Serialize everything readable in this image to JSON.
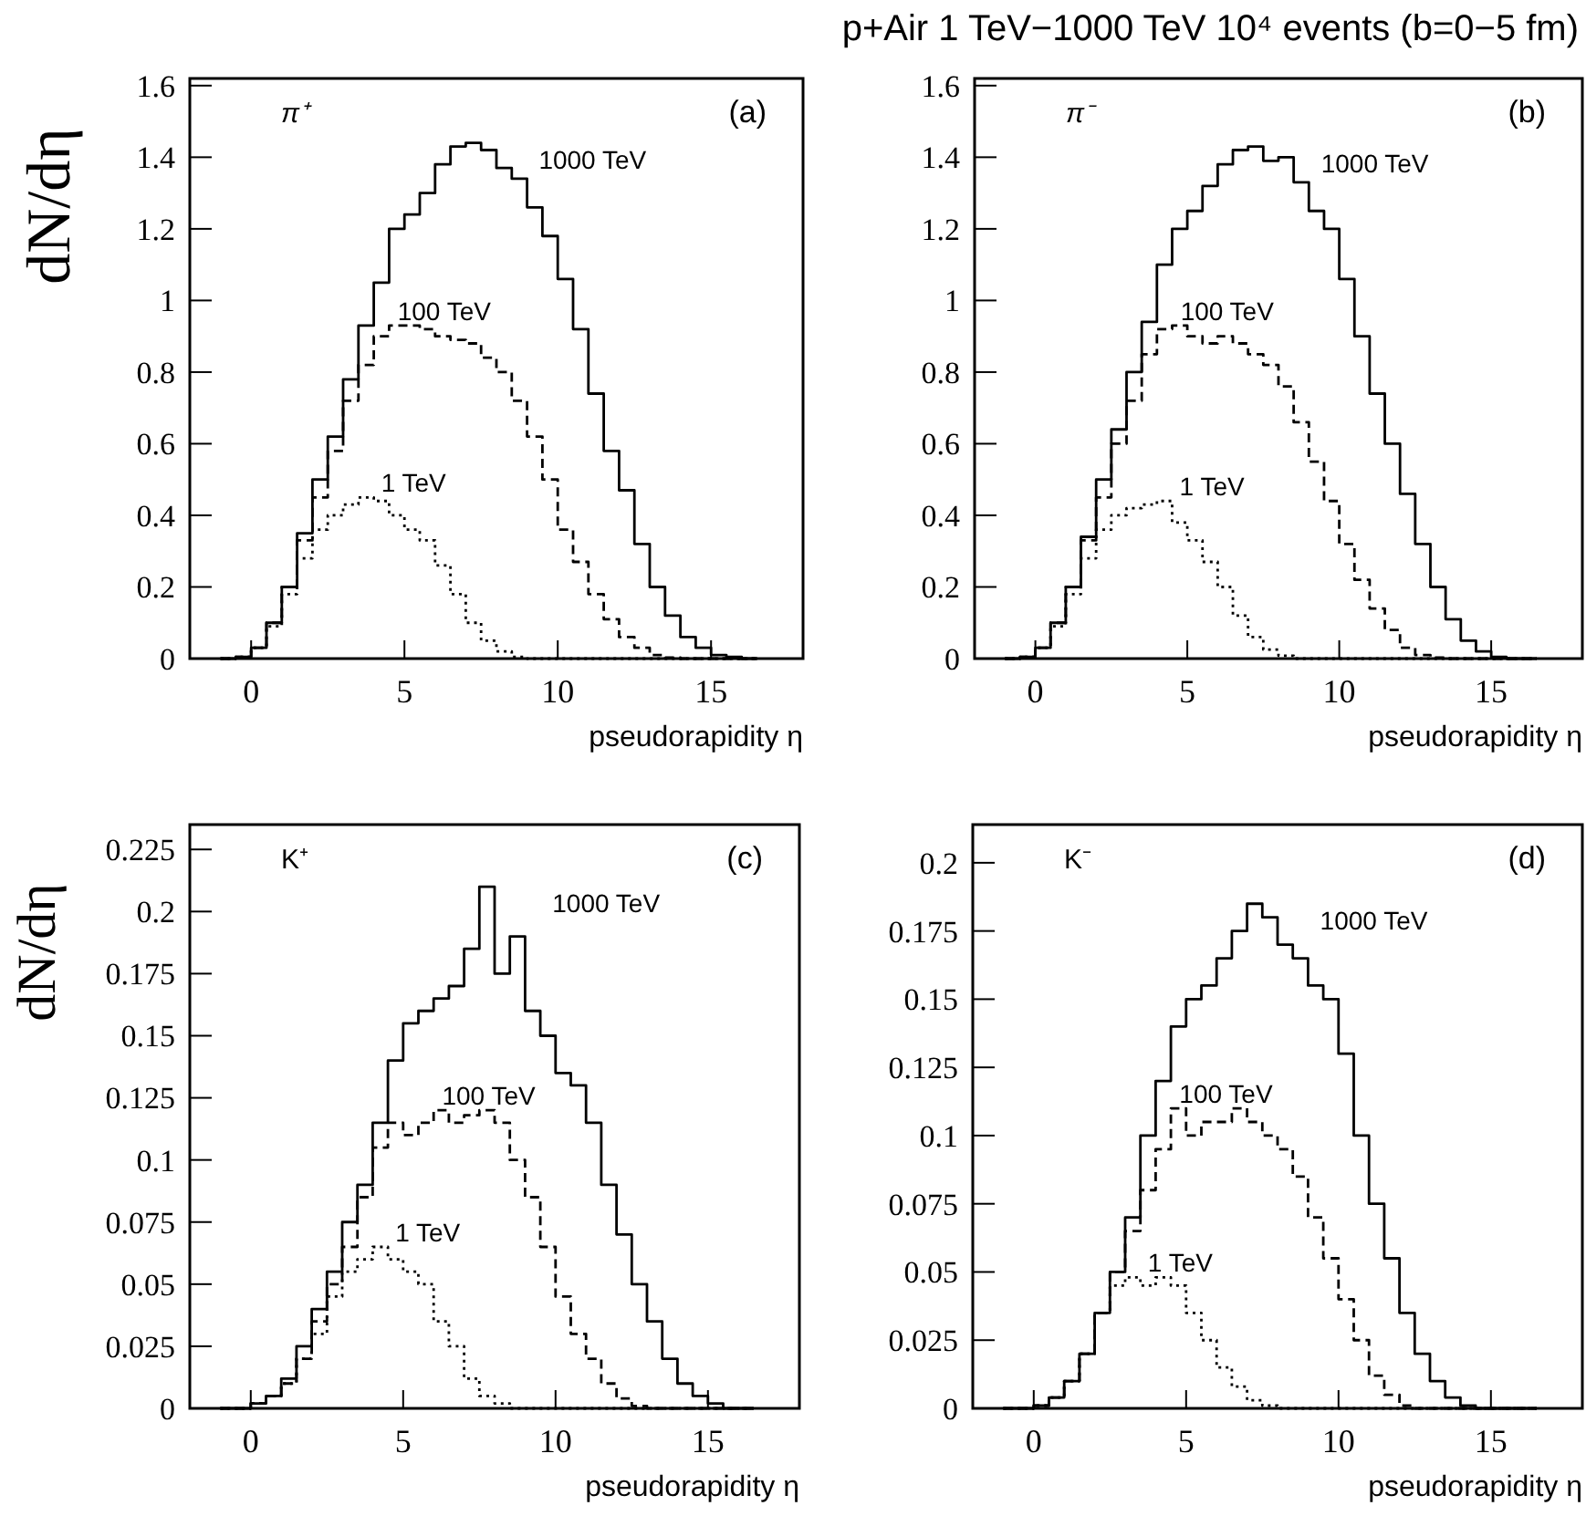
{
  "chart_data": [
    {
      "type": "step",
      "xlabel": "pseudorapidity η",
      "ylabel": "dN/dη",
      "annotations": [
        "π⁺",
        "(a)"
      ],
      "xlim": [
        -2,
        18
      ],
      "xticks": [
        0,
        5,
        10,
        15
      ],
      "ylim": [
        0,
        1.62
      ],
      "yticks": [
        0,
        0.2,
        0.4,
        0.6,
        0.8,
        1,
        1.2,
        1.4,
        1.6
      ],
      "x": [
        -1,
        -0.5,
        0,
        0.5,
        1,
        1.5,
        2,
        2.5,
        3,
        3.5,
        4,
        4.5,
        5,
        5.5,
        6,
        6.5,
        7,
        7.5,
        8,
        8.5,
        9,
        9.5,
        10,
        10.5,
        11,
        11.5,
        12,
        12.5,
        13,
        13.5,
        14,
        14.5,
        15,
        15.5,
        16,
        16.5
      ],
      "series": [
        {
          "name": "1000 TeV",
          "color": "#000000",
          "line_style": "solid",
          "values": [
            0,
            0.005,
            0.03,
            0.1,
            0.2,
            0.35,
            0.5,
            0.62,
            0.78,
            0.93,
            1.05,
            1.2,
            1.24,
            1.3,
            1.38,
            1.43,
            1.44,
            1.42,
            1.37,
            1.34,
            1.26,
            1.18,
            1.06,
            0.92,
            0.74,
            0.58,
            0.47,
            0.32,
            0.2,
            0.12,
            0.06,
            0.03,
            0.01,
            0.005,
            0,
            0
          ]
        },
        {
          "name": "100 TeV",
          "color": "#000000",
          "line_style": "dashed",
          "values": [
            0,
            0.005,
            0.03,
            0.1,
            0.2,
            0.33,
            0.45,
            0.58,
            0.72,
            0.82,
            0.9,
            0.93,
            0.93,
            0.92,
            0.9,
            0.89,
            0.88,
            0.84,
            0.8,
            0.72,
            0.62,
            0.5,
            0.36,
            0.27,
            0.18,
            0.11,
            0.06,
            0.03,
            0.01,
            0.003,
            0,
            0,
            0,
            0,
            0,
            0
          ]
        },
        {
          "name": "1 TeV",
          "color": "#000000",
          "line_style": "dotted",
          "values": [
            0,
            0.005,
            0.03,
            0.09,
            0.18,
            0.28,
            0.36,
            0.4,
            0.43,
            0.45,
            0.44,
            0.4,
            0.36,
            0.33,
            0.26,
            0.18,
            0.1,
            0.05,
            0.02,
            0.005,
            0,
            0,
            0,
            0,
            0,
            0,
            0,
            0,
            0,
            0,
            0,
            0,
            0,
            0,
            0,
            0
          ]
        }
      ]
    },
    {
      "type": "step",
      "title": "p+Air 1 TeV−1000 TeV 10⁴ events (b=0−5 fm)",
      "xlabel": "pseudorapidity η",
      "annotations": [
        "π⁻",
        "(b)"
      ],
      "xlim": [
        -2,
        18
      ],
      "xticks": [
        0,
        5,
        10,
        15
      ],
      "ylim": [
        0,
        1.62
      ],
      "yticks": [
        0,
        0.2,
        0.4,
        0.6,
        0.8,
        1,
        1.2,
        1.4,
        1.6
      ],
      "x": [
        -1,
        -0.5,
        0,
        0.5,
        1,
        1.5,
        2,
        2.5,
        3,
        3.5,
        4,
        4.5,
        5,
        5.5,
        6,
        6.5,
        7,
        7.5,
        8,
        8.5,
        9,
        9.5,
        10,
        10.5,
        11,
        11.5,
        12,
        12.5,
        13,
        13.5,
        14,
        14.5,
        15,
        15.5,
        16,
        16.5
      ],
      "series": [
        {
          "name": "1000 TeV",
          "color": "#000000",
          "line_style": "solid",
          "values": [
            0,
            0.005,
            0.03,
            0.1,
            0.2,
            0.34,
            0.5,
            0.64,
            0.8,
            0.94,
            1.1,
            1.2,
            1.25,
            1.32,
            1.38,
            1.42,
            1.43,
            1.39,
            1.4,
            1.33,
            1.25,
            1.2,
            1.06,
            0.9,
            0.74,
            0.6,
            0.46,
            0.32,
            0.2,
            0.11,
            0.05,
            0.02,
            0.005,
            0,
            0,
            0
          ]
        },
        {
          "name": "100 TeV",
          "color": "#000000",
          "line_style": "dashed",
          "values": [
            0,
            0.005,
            0.03,
            0.1,
            0.2,
            0.33,
            0.45,
            0.6,
            0.72,
            0.85,
            0.92,
            0.93,
            0.9,
            0.88,
            0.9,
            0.88,
            0.85,
            0.82,
            0.76,
            0.66,
            0.55,
            0.44,
            0.32,
            0.22,
            0.14,
            0.08,
            0.03,
            0.01,
            0.003,
            0,
            0,
            0,
            0,
            0,
            0,
            0
          ]
        },
        {
          "name": "1 TeV",
          "color": "#000000",
          "line_style": "dotted",
          "values": [
            0,
            0.005,
            0.03,
            0.09,
            0.18,
            0.28,
            0.36,
            0.4,
            0.42,
            0.43,
            0.44,
            0.38,
            0.33,
            0.27,
            0.2,
            0.12,
            0.06,
            0.025,
            0.008,
            0,
            0,
            0,
            0,
            0,
            0,
            0,
            0,
            0,
            0,
            0,
            0,
            0,
            0,
            0,
            0,
            0
          ]
        }
      ]
    },
    {
      "type": "step",
      "xlabel": "pseudorapidity η",
      "ylabel": "dN/dη",
      "annotations": [
        "K⁺",
        "(c)"
      ],
      "xlim": [
        -2,
        18
      ],
      "xticks": [
        0,
        5,
        10,
        15
      ],
      "ylim": [
        0,
        0.235
      ],
      "yticks": [
        0,
        0.025,
        0.05,
        0.075,
        0.1,
        0.125,
        0.15,
        0.175,
        0.2,
        0.225
      ],
      "x": [
        -1,
        -0.5,
        0,
        0.5,
        1,
        1.5,
        2,
        2.5,
        3,
        3.5,
        4,
        4.5,
        5,
        5.5,
        6,
        6.5,
        7,
        7.5,
        8,
        8.5,
        9,
        9.5,
        10,
        10.5,
        11,
        11.5,
        12,
        12.5,
        13,
        13.5,
        14,
        14.5,
        15,
        15.5,
        16,
        16.5
      ],
      "series": [
        {
          "name": "1000 TeV",
          "color": "#000000",
          "line_style": "solid",
          "values": [
            0,
            0,
            0.002,
            0.005,
            0.012,
            0.025,
            0.04,
            0.055,
            0.075,
            0.09,
            0.115,
            0.14,
            0.155,
            0.16,
            0.165,
            0.17,
            0.185,
            0.21,
            0.175,
            0.19,
            0.16,
            0.15,
            0.135,
            0.13,
            0.115,
            0.09,
            0.07,
            0.05,
            0.035,
            0.02,
            0.01,
            0.005,
            0.002,
            0,
            0,
            0
          ]
        },
        {
          "name": "100 TeV",
          "color": "#000000",
          "line_style": "dashed",
          "values": [
            0,
            0,
            0.002,
            0.005,
            0.01,
            0.02,
            0.035,
            0.05,
            0.065,
            0.085,
            0.105,
            0.115,
            0.11,
            0.115,
            0.12,
            0.115,
            0.118,
            0.12,
            0.115,
            0.1,
            0.085,
            0.065,
            0.045,
            0.03,
            0.02,
            0.01,
            0.004,
            0.001,
            0,
            0,
            0,
            0,
            0,
            0,
            0,
            0
          ]
        },
        {
          "name": "1 TeV",
          "color": "#000000",
          "line_style": "dotted",
          "values": [
            0,
            0,
            0.002,
            0.005,
            0.01,
            0.02,
            0.03,
            0.045,
            0.055,
            0.06,
            0.065,
            0.06,
            0.055,
            0.05,
            0.035,
            0.025,
            0.012,
            0.005,
            0.002,
            0,
            0,
            0,
            0,
            0,
            0,
            0,
            0,
            0,
            0,
            0,
            0,
            0,
            0,
            0,
            0,
            0
          ]
        }
      ]
    },
    {
      "type": "step",
      "xlabel": "pseudorapidity η",
      "annotations": [
        "K⁻",
        "(d)"
      ],
      "xlim": [
        -2,
        18
      ],
      "xticks": [
        0,
        5,
        10,
        15
      ],
      "ylim": [
        0,
        0.214
      ],
      "yticks": [
        0,
        0.025,
        0.05,
        0.075,
        0.1,
        0.125,
        0.15,
        0.175,
        0.2
      ],
      "x": [
        -1,
        -0.5,
        0,
        0.5,
        1,
        1.5,
        2,
        2.5,
        3,
        3.5,
        4,
        4.5,
        5,
        5.5,
        6,
        6.5,
        7,
        7.5,
        8,
        8.5,
        9,
        9.5,
        10,
        10.5,
        11,
        11.5,
        12,
        12.5,
        13,
        13.5,
        14,
        14.5,
        15,
        15.5,
        16,
        16.5
      ],
      "series": [
        {
          "name": "1000 TeV",
          "color": "#000000",
          "line_style": "solid",
          "values": [
            0,
            0,
            0.001,
            0.004,
            0.01,
            0.02,
            0.035,
            0.05,
            0.07,
            0.1,
            0.12,
            0.14,
            0.15,
            0.155,
            0.165,
            0.175,
            0.185,
            0.18,
            0.17,
            0.165,
            0.155,
            0.15,
            0.13,
            0.1,
            0.075,
            0.055,
            0.035,
            0.02,
            0.01,
            0.004,
            0.001,
            0,
            0,
            0,
            0,
            0
          ]
        },
        {
          "name": "100 TeV",
          "color": "#000000",
          "line_style": "dashed",
          "values": [
            0,
            0,
            0.001,
            0.004,
            0.01,
            0.02,
            0.035,
            0.05,
            0.065,
            0.08,
            0.095,
            0.11,
            0.1,
            0.105,
            0.105,
            0.11,
            0.105,
            0.1,
            0.095,
            0.085,
            0.07,
            0.055,
            0.04,
            0.025,
            0.012,
            0.005,
            0.001,
            0,
            0,
            0,
            0,
            0,
            0,
            0,
            0,
            0
          ]
        },
        {
          "name": "1 TeV",
          "color": "#000000",
          "line_style": "dotted",
          "values": [
            0,
            0,
            0.001,
            0.004,
            0.01,
            0.02,
            0.035,
            0.045,
            0.048,
            0.045,
            0.048,
            0.045,
            0.035,
            0.025,
            0.015,
            0.008,
            0.003,
            0.001,
            0,
            0,
            0,
            0,
            0,
            0,
            0,
            0,
            0,
            0,
            0,
            0,
            0,
            0,
            0,
            0,
            0,
            0
          ]
        }
      ]
    }
  ]
}
